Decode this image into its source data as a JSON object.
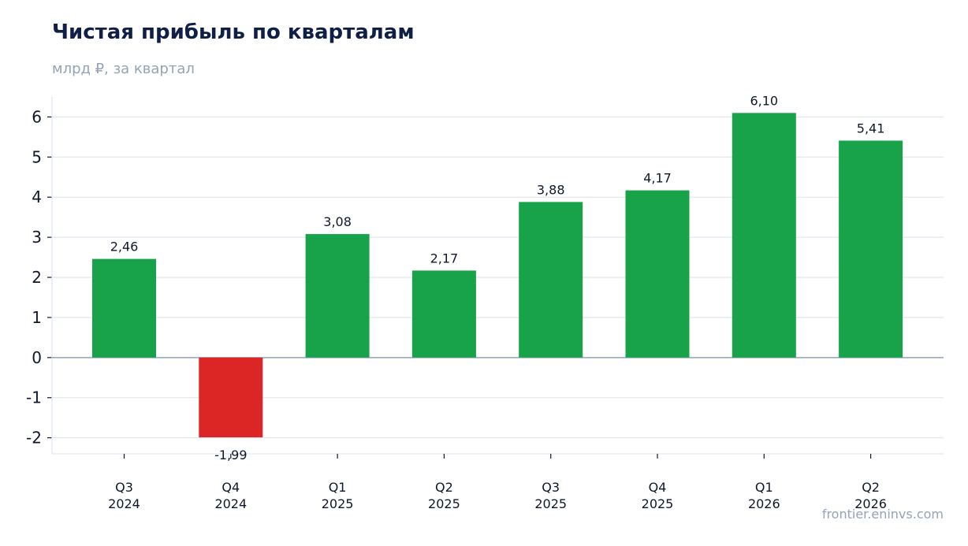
{
  "chart_data": {
    "type": "bar",
    "title": "Чистая прибыль по кварталам",
    "subtitle": "млрд ₽, за квартал",
    "categories": [
      [
        "Q3",
        "2024"
      ],
      [
        "Q4",
        "2024"
      ],
      [
        "Q1",
        "2025"
      ],
      [
        "Q2",
        "2025"
      ],
      [
        "Q3",
        "2025"
      ],
      [
        "Q4",
        "2025"
      ],
      [
        "Q1",
        "2026"
      ],
      [
        "Q2",
        "2026"
      ]
    ],
    "values": [
      2.46,
      -1.99,
      3.08,
      2.17,
      3.88,
      4.17,
      6.1,
      5.41
    ],
    "value_labels": [
      "2,46",
      "-1,99",
      "3,08",
      "2,17",
      "3,88",
      "4,17",
      "6,10",
      "5,41"
    ],
    "ylim": [
      -2.4,
      6.5
    ],
    "yticks": [
      -2,
      -1,
      0,
      1,
      2,
      3,
      4,
      5,
      6
    ],
    "ytick_labels": [
      "-2",
      "-1",
      "0",
      "1",
      "2",
      "3",
      "4",
      "5",
      "6"
    ],
    "grid": true,
    "colors": {
      "positive": "#18a34a",
      "negative": "#dc2626",
      "grid": "#e2e8f0",
      "zero_line": "#94a3b8",
      "axis": "#e2e8f0"
    }
  },
  "footer": {
    "source": "frontier.eninvs.com"
  }
}
